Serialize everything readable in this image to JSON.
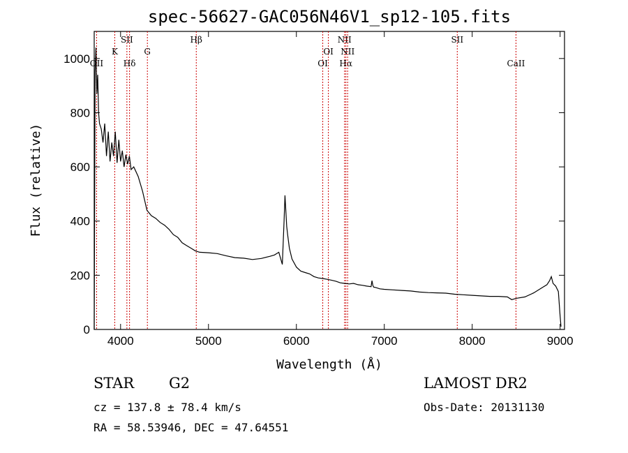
{
  "chart_data": {
    "type": "line",
    "title": "spec-56627-GAC056N46V1_sp12-105.fits",
    "xlabel": "Wavelength (Å)",
    "ylabel": "Flux (relative)",
    "xlim": [
      3700,
      9050
    ],
    "ylim": [
      0,
      1100
    ],
    "xticks": [
      4000,
      5000,
      6000,
      7000,
      8000,
      9000
    ],
    "yticks": [
      0,
      200,
      400,
      600,
      800,
      1000
    ],
    "grid": false,
    "series_color": "#000000",
    "line_marker_color": "#cc0000",
    "spectrum": {
      "x": [
        3700,
        3710,
        3720,
        3730,
        3740,
        3750,
        3760,
        3780,
        3800,
        3820,
        3840,
        3860,
        3880,
        3900,
        3920,
        3940,
        3960,
        3980,
        4000,
        4020,
        4040,
        4060,
        4080,
        4100,
        4120,
        4150,
        4200,
        4250,
        4300,
        4350,
        4400,
        4450,
        4500,
        4550,
        4600,
        4650,
        4700,
        4750,
        4800,
        4850,
        4900,
        5000,
        5100,
        5200,
        5300,
        5400,
        5500,
        5600,
        5700,
        5750,
        5800,
        5840,
        5860,
        5870,
        5880,
        5890,
        5900,
        5920,
        5950,
        6000,
        6050,
        6100,
        6150,
        6200,
        6250,
        6300,
        6350,
        6400,
        6450,
        6500,
        6550,
        6600,
        6650,
        6700,
        6750,
        6800,
        6850,
        6860,
        6870,
        6880,
        6900,
        6950,
        7000,
        7100,
        7200,
        7300,
        7400,
        7500,
        7600,
        7700,
        7800,
        7900,
        8000,
        8100,
        8200,
        8300,
        8400,
        8450,
        8500,
        8600,
        8700,
        8800,
        8850,
        8880,
        8900,
        8920,
        8950,
        8980,
        9000,
        9010
      ],
      "y": [
        0,
        950,
        1040,
        870,
        940,
        800,
        760,
        740,
        690,
        760,
        640,
        730,
        620,
        690,
        640,
        730,
        615,
        700,
        620,
        660,
        600,
        645,
        610,
        640,
        590,
        600,
        565,
        510,
        440,
        420,
        410,
        395,
        385,
        370,
        350,
        340,
        320,
        310,
        300,
        290,
        285,
        283,
        280,
        272,
        265,
        263,
        258,
        262,
        270,
        275,
        285,
        240,
        400,
        495,
        440,
        380,
        350,
        300,
        260,
        230,
        215,
        210,
        205,
        195,
        190,
        188,
        185,
        182,
        178,
        172,
        170,
        168,
        170,
        165,
        163,
        160,
        158,
        180,
        162,
        156,
        155,
        150,
        148,
        146,
        144,
        142,
        138,
        136,
        135,
        134,
        130,
        128,
        126,
        124,
        122,
        122,
        120,
        110,
        115,
        120,
        135,
        155,
        165,
        180,
        195,
        170,
        160,
        140,
        50,
        10
      ]
    },
    "emission_lines": [
      {
        "label": "OII",
        "wavelength": 3727,
        "row": 3
      },
      {
        "label": "K",
        "wavelength": 3934,
        "row": 1
      },
      {
        "label": "Hδ",
        "wavelength": 4102,
        "row": 3
      },
      {
        "label": "SII",
        "wavelength": 4072,
        "row": 0
      },
      {
        "label": "G",
        "wavelength": 4305,
        "row": 1
      },
      {
        "label": "Hβ",
        "wavelength": 4861,
        "row": 0
      },
      {
        "label": "OI",
        "wavelength": 6300,
        "row": 3
      },
      {
        "label": "OI",
        "wavelength": 6364,
        "row": 1
      },
      {
        "label": "NII",
        "wavelength": 6548,
        "row": 0
      },
      {
        "label": "Hα",
        "wavelength": 6563,
        "row": 3
      },
      {
        "label": "NII",
        "wavelength": 6583,
        "row": 1
      },
      {
        "label": "SII",
        "wavelength": 7830,
        "row": 0
      },
      {
        "label": "CaII",
        "wavelength": 8498,
        "row": 3
      }
    ]
  },
  "footer": {
    "object_class": "STAR",
    "subclass": "G2",
    "survey": "LAMOST DR2",
    "cz_text": "cz = 137.8 ± 78.4 km/s",
    "obs_date": "Obs-Date: 20131130",
    "coords": "RA =  58.53946, DEC =  47.64551"
  }
}
